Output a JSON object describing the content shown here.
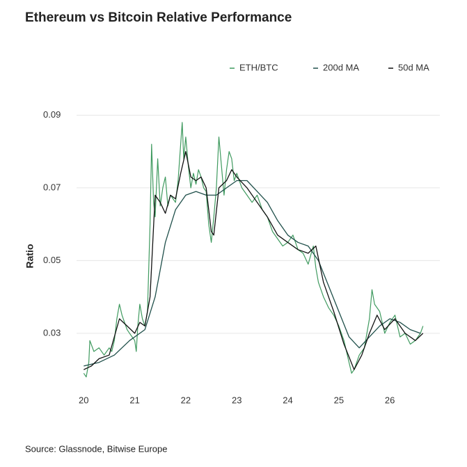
{
  "chart_data": {
    "type": "line",
    "title": "Ethereum vs Bitcoin Relative Performance",
    "y_label": "Ratio",
    "source": "Source: Glassnode, Bitwise Europe",
    "legend": "top-right",
    "grid": true,
    "xlim": [
      19.86,
      26.98
    ],
    "xticks": [
      20,
      21,
      22,
      23,
      24,
      25,
      26
    ],
    "ylim": [
      0.016,
      0.092
    ],
    "yticks": [
      0.03,
      0.05,
      0.07,
      0.09
    ],
    "series": [
      {
        "name": "ETH/BTC",
        "color": "#3f9a5f",
        "x": [
          20.0,
          20.05,
          20.1,
          20.12,
          20.2,
          20.3,
          20.4,
          20.5,
          20.55,
          20.6,
          20.65,
          20.7,
          20.75,
          20.8,
          20.85,
          20.9,
          20.95,
          21.0,
          21.03,
          21.06,
          21.1,
          21.15,
          21.2,
          21.25,
          21.3,
          21.33,
          21.37,
          21.4,
          21.45,
          21.5,
          21.55,
          21.6,
          21.65,
          21.7,
          21.8,
          21.85,
          21.9,
          21.93,
          21.96,
          22.0,
          22.05,
          22.1,
          22.15,
          22.2,
          22.25,
          22.3,
          22.35,
          22.4,
          22.45,
          22.5,
          22.55,
          22.6,
          22.65,
          22.7,
          22.75,
          22.8,
          22.85,
          22.9,
          22.95,
          23.0,
          23.1,
          23.2,
          23.3,
          23.4,
          23.5,
          23.6,
          23.7,
          23.8,
          23.9,
          24.0,
          24.1,
          24.2,
          24.3,
          24.4,
          24.5,
          24.55,
          24.6,
          24.7,
          24.8,
          24.9,
          25.0,
          25.1,
          25.2,
          25.25,
          25.3,
          25.4,
          25.5,
          25.6,
          25.65,
          25.7,
          25.8,
          25.9,
          26.0,
          26.1,
          26.2,
          26.3,
          26.4,
          26.5,
          26.6,
          26.65
        ],
        "values": [
          0.019,
          0.018,
          0.022,
          0.028,
          0.025,
          0.026,
          0.024,
          0.026,
          0.025,
          0.028,
          0.034,
          0.038,
          0.035,
          0.033,
          0.031,
          0.03,
          0.029,
          0.028,
          0.025,
          0.032,
          0.038,
          0.034,
          0.032,
          0.036,
          0.06,
          0.082,
          0.066,
          0.062,
          0.078,
          0.065,
          0.07,
          0.073,
          0.065,
          0.068,
          0.066,
          0.072,
          0.082,
          0.088,
          0.078,
          0.084,
          0.076,
          0.07,
          0.074,
          0.071,
          0.075,
          0.073,
          0.07,
          0.069,
          0.06,
          0.055,
          0.062,
          0.07,
          0.084,
          0.076,
          0.068,
          0.075,
          0.08,
          0.078,
          0.072,
          0.074,
          0.07,
          0.068,
          0.066,
          0.068,
          0.064,
          0.062,
          0.058,
          0.056,
          0.054,
          0.055,
          0.057,
          0.053,
          0.052,
          0.049,
          0.054,
          0.048,
          0.044,
          0.04,
          0.037,
          0.035,
          0.032,
          0.028,
          0.022,
          0.019,
          0.02,
          0.024,
          0.026,
          0.034,
          0.042,
          0.038,
          0.036,
          0.03,
          0.033,
          0.035,
          0.029,
          0.03,
          0.027,
          0.028,
          0.03,
          0.032
        ]
      },
      {
        "name": "200d MA",
        "color": "#1f4f4a",
        "x": [
          20.0,
          20.3,
          20.6,
          20.9,
          21.2,
          21.4,
          21.6,
          21.8,
          22.0,
          22.2,
          22.4,
          22.6,
          22.8,
          23.0,
          23.2,
          23.4,
          23.6,
          23.8,
          24.0,
          24.2,
          24.4,
          24.6,
          24.8,
          25.0,
          25.2,
          25.4,
          25.6,
          25.8,
          26.0,
          26.2,
          26.4,
          26.6
        ],
        "values": [
          0.021,
          0.022,
          0.024,
          0.028,
          0.031,
          0.04,
          0.055,
          0.064,
          0.068,
          0.069,
          0.068,
          0.068,
          0.07,
          0.072,
          0.072,
          0.069,
          0.066,
          0.061,
          0.057,
          0.055,
          0.054,
          0.05,
          0.043,
          0.036,
          0.029,
          0.026,
          0.029,
          0.032,
          0.034,
          0.033,
          0.031,
          0.03
        ]
      },
      {
        "name": "50d MA",
        "color": "#111111",
        "x": [
          20.0,
          20.15,
          20.3,
          20.5,
          20.7,
          20.85,
          21.0,
          21.1,
          21.2,
          21.3,
          21.4,
          21.5,
          21.6,
          21.7,
          21.8,
          21.9,
          22.0,
          22.1,
          22.2,
          22.3,
          22.4,
          22.5,
          22.55,
          22.65,
          22.8,
          22.9,
          23.0,
          23.2,
          23.4,
          23.6,
          23.8,
          24.0,
          24.2,
          24.4,
          24.55,
          24.7,
          24.9,
          25.1,
          25.3,
          25.45,
          25.6,
          25.75,
          25.9,
          26.1,
          26.3,
          26.5,
          26.65
        ],
        "values": [
          0.02,
          0.021,
          0.023,
          0.024,
          0.034,
          0.032,
          0.03,
          0.033,
          0.032,
          0.04,
          0.068,
          0.066,
          0.063,
          0.068,
          0.067,
          0.074,
          0.08,
          0.073,
          0.072,
          0.073,
          0.07,
          0.058,
          0.057,
          0.07,
          0.072,
          0.075,
          0.073,
          0.07,
          0.066,
          0.062,
          0.057,
          0.055,
          0.053,
          0.052,
          0.054,
          0.044,
          0.036,
          0.027,
          0.02,
          0.024,
          0.03,
          0.035,
          0.031,
          0.034,
          0.03,
          0.028,
          0.03
        ]
      }
    ]
  }
}
